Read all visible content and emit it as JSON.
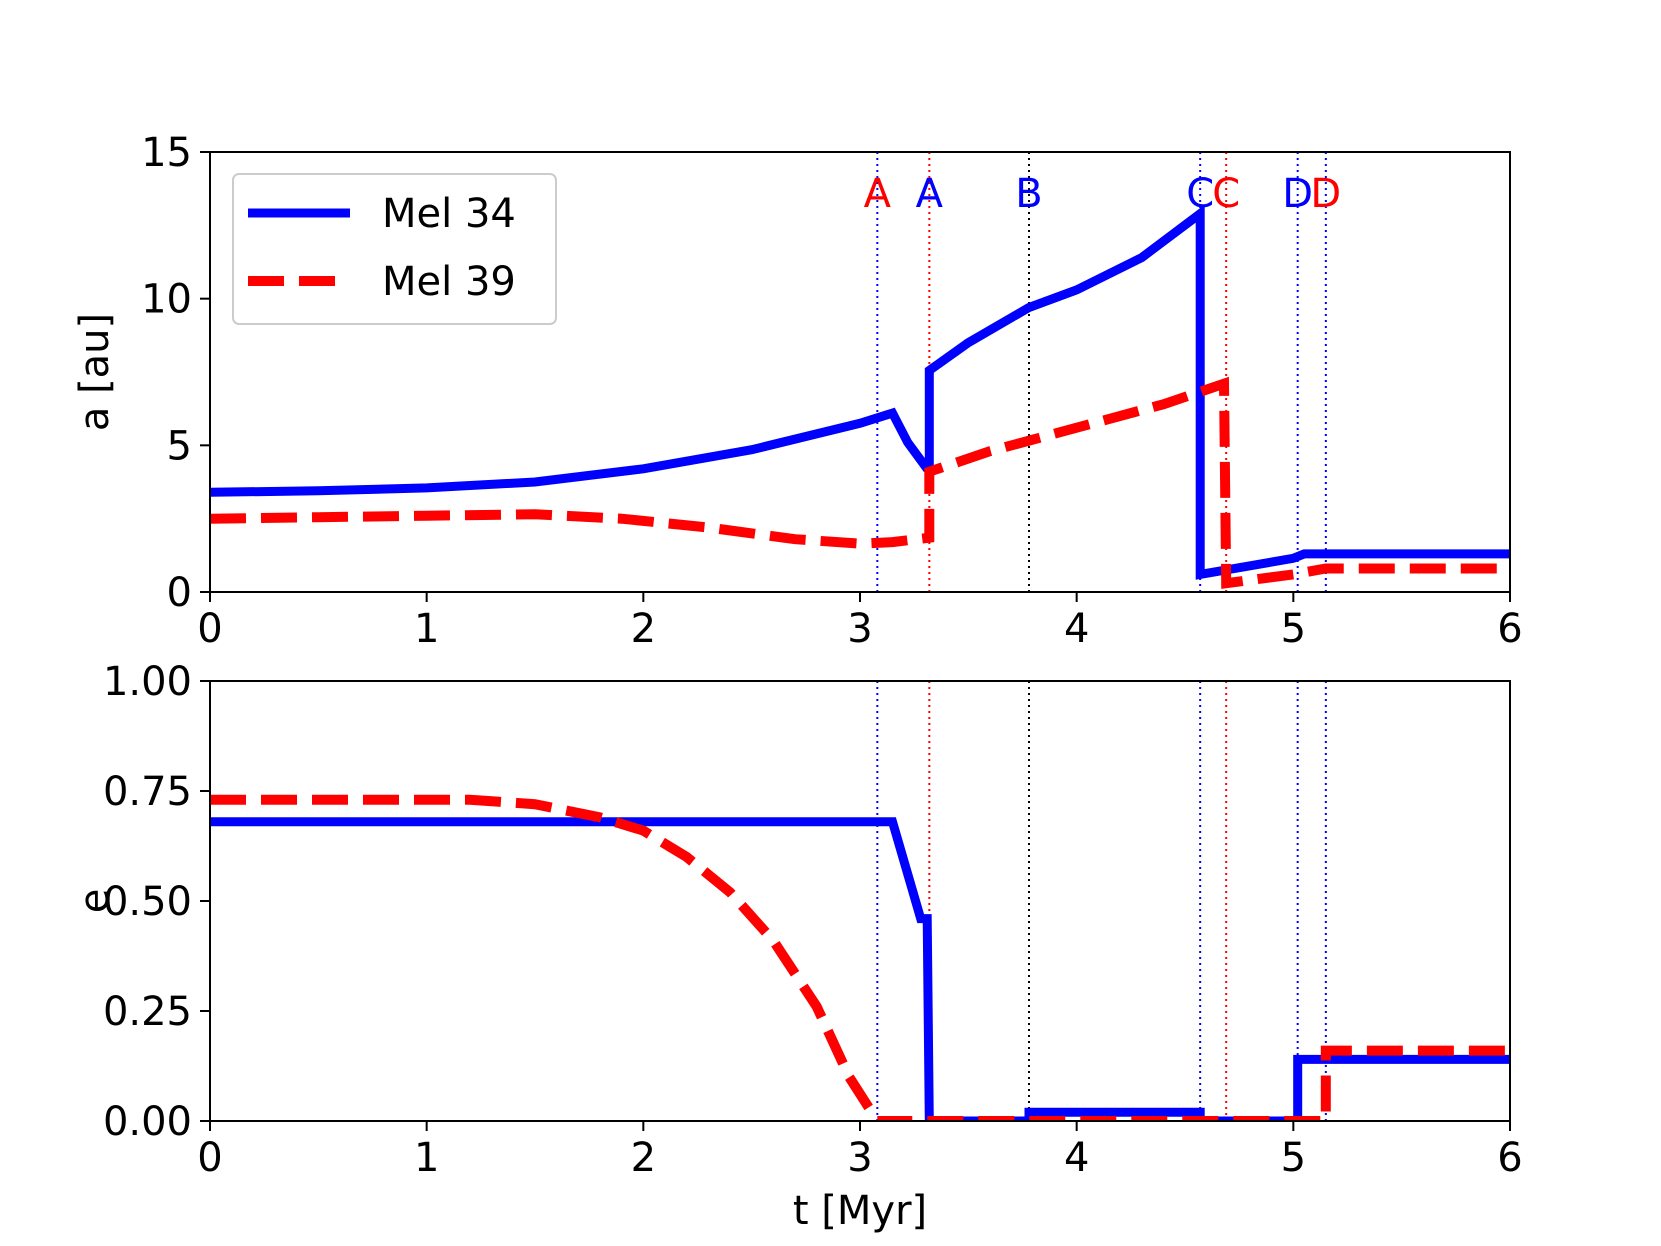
{
  "chart_data": [
    {
      "type": "line",
      "panel": "top",
      "xlabel": "",
      "ylabel": "a [au]",
      "xlim": [
        0,
        6
      ],
      "ylim": [
        0,
        15
      ],
      "xticks": [
        "0",
        "1",
        "2",
        "3",
        "4",
        "5",
        "6"
      ],
      "yticks": [
        "0",
        "5",
        "10",
        "15"
      ],
      "legend": {
        "placement": "upper-left",
        "entries": [
          "Mel 34",
          "Mel 39"
        ]
      },
      "grid": false,
      "series": [
        {
          "name": "Mel 34",
          "color": "#0000ff",
          "style": "solid",
          "points": [
            [
              0,
              3.4
            ],
            [
              0.5,
              3.45
            ],
            [
              1.0,
              3.55
            ],
            [
              1.5,
              3.75
            ],
            [
              2.0,
              4.2
            ],
            [
              2.5,
              4.85
            ],
            [
              3.0,
              5.75
            ],
            [
              3.15,
              6.1
            ],
            [
              3.22,
              5.1
            ],
            [
              3.3,
              4.3
            ],
            [
              3.32,
              4.4
            ],
            [
              3.32,
              7.55
            ],
            [
              3.5,
              8.5
            ],
            [
              3.78,
              9.7
            ],
            [
              4.0,
              10.3
            ],
            [
              4.3,
              11.4
            ],
            [
              4.57,
              12.9
            ],
            [
              4.57,
              0.6
            ],
            [
              5.0,
              1.15
            ],
            [
              5.05,
              1.3
            ],
            [
              6.0,
              1.3
            ]
          ]
        },
        {
          "name": "Mel 39",
          "color": "#ff0000",
          "style": "dashed",
          "points": [
            [
              0,
              2.5
            ],
            [
              0.5,
              2.55
            ],
            [
              1.0,
              2.6
            ],
            [
              1.5,
              2.65
            ],
            [
              1.9,
              2.5
            ],
            [
              2.3,
              2.2
            ],
            [
              2.7,
              1.8
            ],
            [
              3.0,
              1.65
            ],
            [
              3.15,
              1.7
            ],
            [
              3.32,
              1.85
            ],
            [
              3.32,
              2.9
            ],
            [
              3.32,
              4.1
            ],
            [
              3.6,
              4.8
            ],
            [
              4.0,
              5.6
            ],
            [
              4.4,
              6.4
            ],
            [
              4.68,
              7.1
            ],
            [
              4.69,
              0.3
            ],
            [
              5.0,
              0.6
            ],
            [
              5.15,
              0.8
            ],
            [
              6.0,
              0.8
            ]
          ]
        }
      ],
      "events": [
        {
          "label": "A",
          "x": 3.08,
          "color": "#ff0000",
          "line_color": "#0000ff"
        },
        {
          "label": "A",
          "x": 3.32,
          "color": "#0000ff",
          "line_color": "#ff0000"
        },
        {
          "label": "B",
          "x": 3.78,
          "color": "#0000ff",
          "line_color": "#000000"
        },
        {
          "label": "C",
          "x": 4.57,
          "color": "#0000ff",
          "line_color": "#0000ff"
        },
        {
          "label": "C",
          "x": 4.69,
          "color": "#ff0000",
          "line_color": "#ff0000"
        },
        {
          "label": "D",
          "x": 5.02,
          "color": "#0000ff",
          "line_color": "#0000ff"
        },
        {
          "label": "D",
          "x": 5.15,
          "color": "#ff0000",
          "line_color": "#0000ff"
        }
      ]
    },
    {
      "type": "line",
      "panel": "bottom",
      "xlabel": "t [Myr]",
      "ylabel": "e",
      "xlim": [
        0,
        6
      ],
      "ylim": [
        0,
        1
      ],
      "xticks": [
        "0",
        "1",
        "2",
        "3",
        "4",
        "5",
        "6"
      ],
      "yticks": [
        "0.00",
        "0.25",
        "0.50",
        "0.75",
        "1.00"
      ],
      "grid": false,
      "series": [
        {
          "name": "Mel 34",
          "color": "#0000ff",
          "style": "solid",
          "points": [
            [
              0,
              0.68
            ],
            [
              3.15,
              0.68
            ],
            [
              3.28,
              0.46
            ],
            [
              3.31,
              0.46
            ],
            [
              3.32,
              0.0
            ],
            [
              3.78,
              0.0
            ],
            [
              3.78,
              0.02
            ],
            [
              4.57,
              0.02
            ],
            [
              4.57,
              0.0
            ],
            [
              5.02,
              0.0
            ],
            [
              5.02,
              0.14
            ],
            [
              6.0,
              0.14
            ]
          ]
        },
        {
          "name": "Mel 39",
          "color": "#ff0000",
          "style": "dashed",
          "points": [
            [
              0,
              0.73
            ],
            [
              1.2,
              0.73
            ],
            [
              1.5,
              0.72
            ],
            [
              1.8,
              0.69
            ],
            [
              2.0,
              0.66
            ],
            [
              2.2,
              0.6
            ],
            [
              2.4,
              0.52
            ],
            [
              2.6,
              0.41
            ],
            [
              2.8,
              0.26
            ],
            [
              2.95,
              0.1
            ],
            [
              3.08,
              0.0
            ],
            [
              5.15,
              0.0
            ],
            [
              5.15,
              0.16
            ],
            [
              6.0,
              0.16
            ]
          ]
        }
      ],
      "events": [
        {
          "x": 3.08,
          "line_color": "#0000ff"
        },
        {
          "x": 3.32,
          "line_color": "#ff0000"
        },
        {
          "x": 3.78,
          "line_color": "#000000"
        },
        {
          "x": 4.57,
          "line_color": "#0000ff"
        },
        {
          "x": 4.69,
          "line_color": "#ff0000"
        },
        {
          "x": 5.02,
          "line_color": "#0000ff"
        },
        {
          "x": 5.15,
          "line_color": "#0000ff"
        }
      ]
    }
  ]
}
